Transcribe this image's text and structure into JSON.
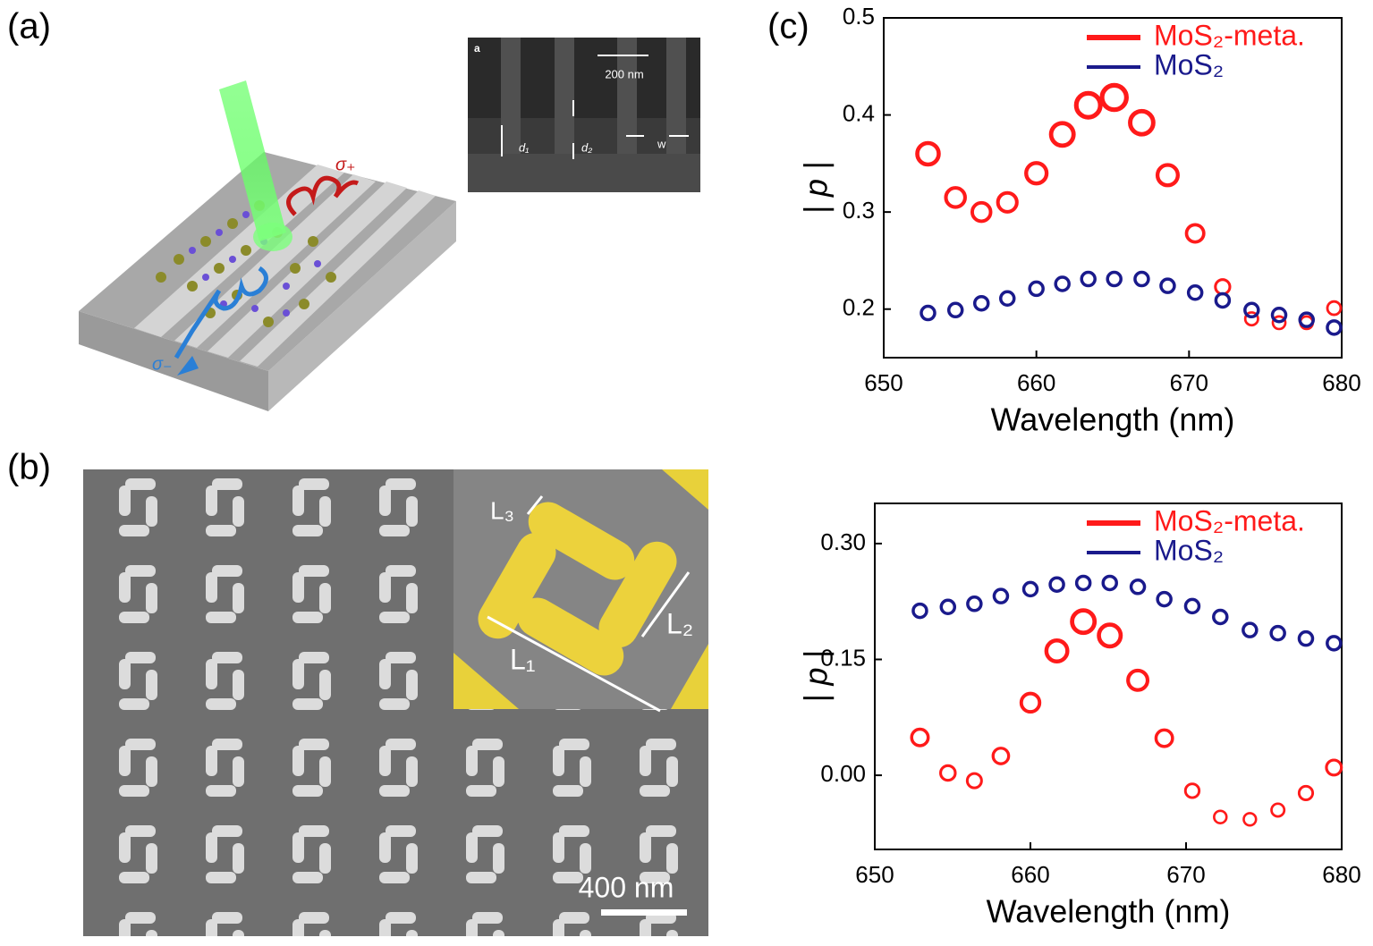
{
  "panels": {
    "a": {
      "label": "(a)",
      "inset_tag": "a",
      "inset_scale": "200 nm",
      "d1": "d₁",
      "d2": "d₂",
      "w": "w",
      "sigma_plus": "σ₊",
      "sigma_minus": "σ₋"
    },
    "b": {
      "label": "(b)",
      "L1": "L₁",
      "L2": "L₂",
      "L3": "L₃",
      "scale_bar": "400 nm"
    },
    "c": {
      "label": "(c)"
    }
  },
  "chart_data": [
    {
      "type": "scatter",
      "xlabel": "Wavelength (nm)",
      "ylabel": "| p |",
      "xlim": [
        650,
        680
      ],
      "xticks": [
        650,
        660,
        670,
        680
      ],
      "ylim": [
        0.15,
        0.5
      ],
      "yticks": [
        0.2,
        0.3,
        0.4,
        0.5
      ],
      "x": [
        652.9,
        654.7,
        656.4,
        658.1,
        660.0,
        661.7,
        663.4,
        665.1,
        666.9,
        668.6,
        670.4,
        672.2,
        674.1,
        675.9,
        677.7,
        679.5
      ],
      "series": [
        {
          "name": "MoS₂-meta.",
          "color": "#ff1a1a",
          "values": [
            0.36,
            0.315,
            0.3,
            0.31,
            0.34,
            0.38,
            0.41,
            0.418,
            0.392,
            0.338,
            0.278,
            0.223,
            0.19,
            0.186,
            0.186,
            0.201
          ]
        },
        {
          "name": "MoS₂",
          "color": "#1a1a8c",
          "values": [
            0.196,
            0.199,
            0.206,
            0.211,
            0.221,
            0.226,
            0.231,
            0.231,
            0.231,
            0.224,
            0.217,
            0.209,
            0.199,
            0.194,
            0.189,
            0.181
          ]
        }
      ]
    },
    {
      "type": "scatter",
      "xlabel": "Wavelength (nm)",
      "ylabel": "| p |",
      "xlim": [
        650,
        680
      ],
      "xticks": [
        650,
        660,
        670,
        680
      ],
      "ylim": [
        -0.096,
        0.352
      ],
      "yticks": [
        {
          "value": 0,
          "label": "0.00"
        },
        {
          "value": 0.15,
          "label": "0.15"
        },
        {
          "value": 0.3,
          "label": "0.30"
        }
      ],
      "x": [
        652.9,
        654.7,
        656.4,
        658.1,
        660.0,
        661.7,
        663.4,
        665.1,
        666.9,
        668.6,
        670.4,
        672.2,
        674.1,
        675.9,
        677.7,
        679.5
      ],
      "series": [
        {
          "name": "MoS₂-meta.",
          "color": "#ff1a1a",
          "values": [
            0.049,
            0.003,
            -0.007,
            0.025,
            0.094,
            0.161,
            0.199,
            0.181,
            0.123,
            0.048,
            -0.02,
            -0.054,
            -0.057,
            -0.045,
            -0.023,
            0.01
          ]
        },
        {
          "name": "MoS₂",
          "color": "#1a1a8c",
          "values": [
            0.213,
            0.218,
            0.222,
            0.232,
            0.241,
            0.247,
            0.249,
            0.249,
            0.244,
            0.228,
            0.219,
            0.205,
            0.188,
            0.184,
            0.177,
            0.171
          ]
        }
      ]
    }
  ]
}
